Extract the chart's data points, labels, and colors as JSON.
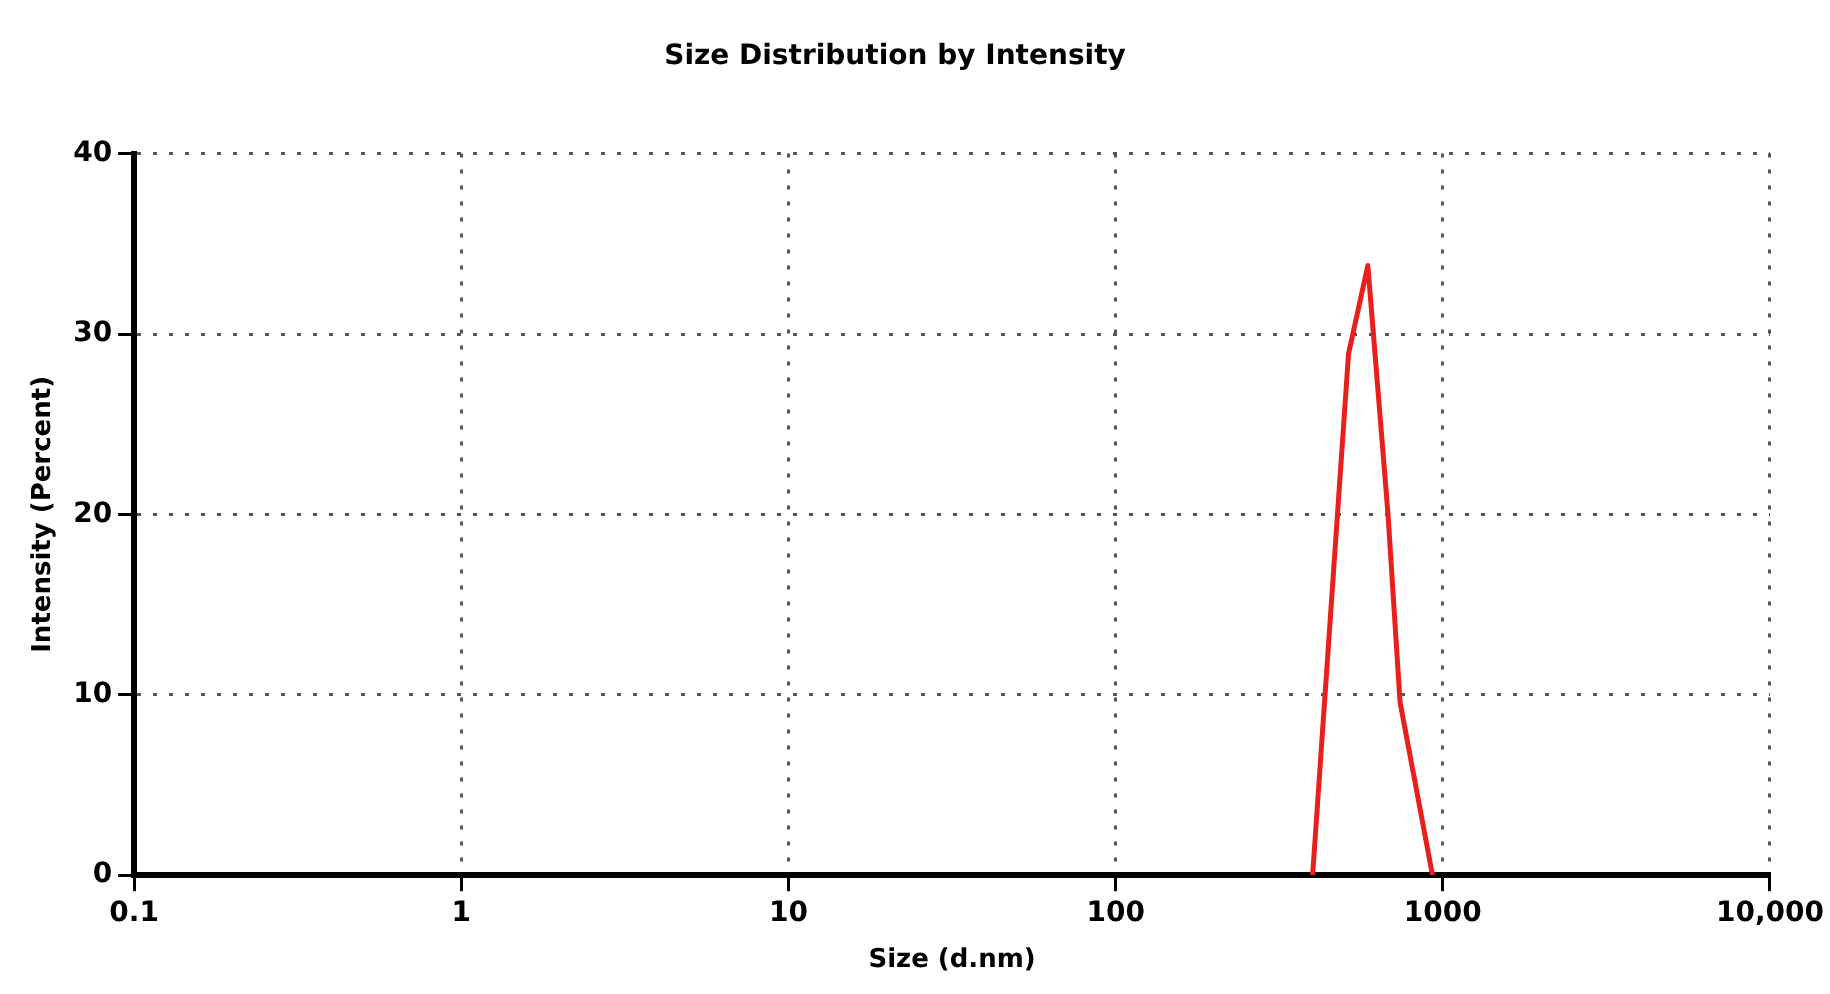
{
  "chart_data": {
    "type": "line",
    "title": "Size Distribution by Intensity",
    "xlabel": "Size (d.nm)",
    "ylabel": "Intensity (Percent)",
    "log": "x",
    "x": [
      400,
      515,
      590,
      680,
      740,
      930
    ],
    "series": [
      {
        "color": "#e8201c",
        "values": [
          0,
          28.9,
          33.8,
          20,
          9.6,
          0
        ]
      }
    ],
    "xlim": [
      0.1,
      10000
    ],
    "xticks": [
      0.1,
      1,
      10,
      100,
      1000,
      {
        "value": 10000,
        "label": "10,000"
      }
    ],
    "ylim": [
      0,
      40
    ],
    "yticks": [
      0,
      10,
      20,
      30,
      40
    ],
    "grid": true,
    "legend": false,
    "marker": "none",
    "line_style": "solid"
  }
}
